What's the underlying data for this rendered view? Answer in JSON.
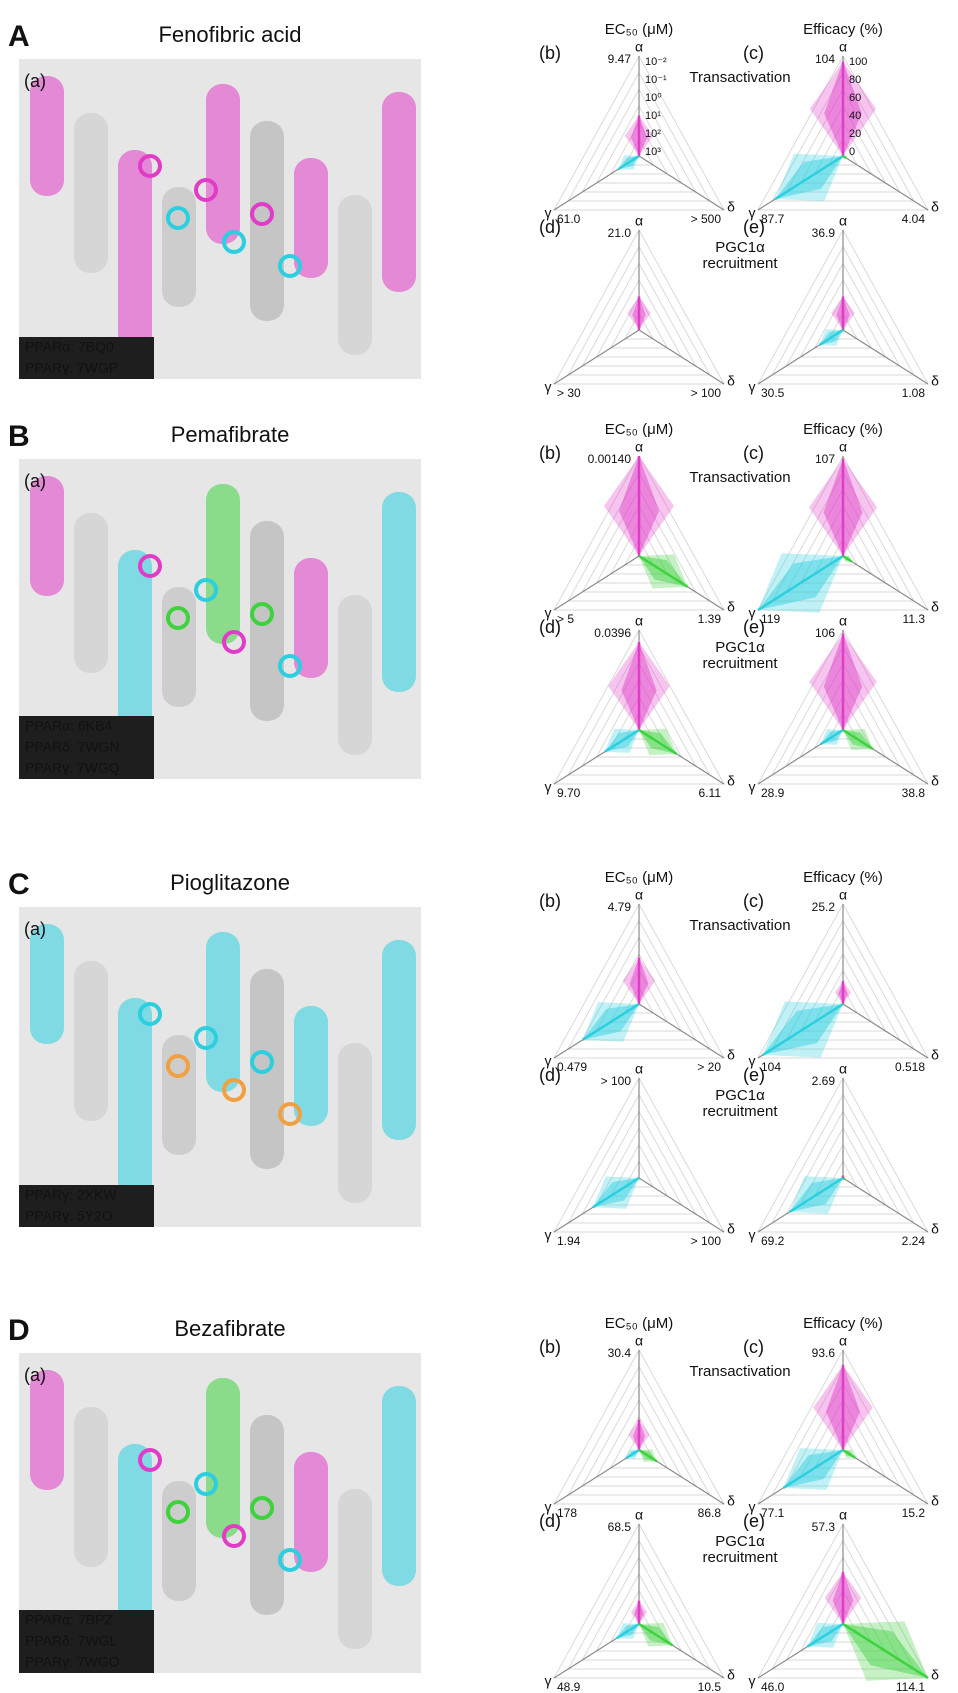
{
  "axis_letters": {
    "alpha": "α",
    "gamma": "γ",
    "delta": "δ"
  },
  "axis_colors": {
    "alpha": "#e03cc8",
    "gamma": "#2ccfe0",
    "delta": "#3ed23e"
  },
  "ec50_ticks": [
    "10⁻²",
    "10⁻¹",
    "10⁰",
    "10¹",
    "10²",
    "10³"
  ],
  "efficacy_ticks": [
    "100",
    "80",
    "60",
    "40",
    "20",
    "0"
  ],
  "panels": [
    {
      "letter": "A",
      "title": "Fenofibric acid",
      "image_label": "(a)",
      "legend": [
        {
          "text": "PPARα: 7BQ0",
          "color": "#e03cc8"
        },
        {
          "text": "PPARγ: 7WGP",
          "color": "#2ccfe0"
        }
      ],
      "ec50_title": "EC₅₀ (μM)",
      "efficacy_title": "Efficacy (%)",
      "row1_title": "Transactivation",
      "row2_title": [
        "PGC1α",
        "recruitment"
      ],
      "charts": [
        {
          "label": "(b)",
          "alpha": "9.47",
          "gamma": "61.0",
          "delta": "> 500"
        },
        {
          "label": "(c)",
          "alpha": "104",
          "gamma": "87.7",
          "delta": "4.04"
        },
        {
          "label": "(d)",
          "alpha": "21.0",
          "gamma": "> 30",
          "delta": "> 100"
        },
        {
          "label": "(e)",
          "alpha": "36.9",
          "gamma": "30.5",
          "delta": "1.08"
        }
      ]
    },
    {
      "letter": "B",
      "title": "Pemafibrate",
      "image_label": "(a)",
      "legend": [
        {
          "text": "PPARα: 6KB4",
          "color": "#e03cc8"
        },
        {
          "text": "PPARδ: 7WGN",
          "color": "#3ed23e"
        },
        {
          "text": "PPARγ: 7WGQ",
          "color": "#2ccfe0"
        }
      ],
      "ec50_title": "EC₅₀ (μM)",
      "efficacy_title": "Efficacy (%)",
      "row1_title": "Transactivation",
      "row2_title": [
        "PGC1α",
        "recruitment"
      ],
      "charts": [
        {
          "label": "(b)",
          "alpha": "0.00140",
          "gamma": "> 5",
          "delta": "1.39"
        },
        {
          "label": "(c)",
          "alpha": "107",
          "gamma": "119",
          "delta": "11.3"
        },
        {
          "label": "(d)",
          "alpha": "0.0396",
          "gamma": "9.70",
          "delta": "6.11"
        },
        {
          "label": "(e)",
          "alpha": "106",
          "gamma": "28.9",
          "delta": "38.8"
        }
      ]
    },
    {
      "letter": "C",
      "title": "Pioglitazone",
      "image_label": "(a)",
      "legend": [
        {
          "text": "PPARγ: 2XKW",
          "color": "#2ccfe0"
        },
        {
          "text": "PPARγ: 5Y2O",
          "color": "#f0a040"
        }
      ],
      "ec50_title": "EC₅₀ (μM)",
      "efficacy_title": "Efficacy (%)",
      "row1_title": "Transactivation",
      "row2_title": [
        "PGC1α",
        "recruitment"
      ],
      "charts": [
        {
          "label": "(b)",
          "alpha": "4.79",
          "gamma": "0.479",
          "delta": "> 20"
        },
        {
          "label": "(c)",
          "alpha": "25.2",
          "gamma": "104",
          "delta": "0.518"
        },
        {
          "label": "(d)",
          "alpha": "> 100",
          "gamma": "1.94",
          "delta": "> 100"
        },
        {
          "label": "(e)",
          "alpha": "2.69",
          "gamma": "69.2",
          "delta": "2.24"
        }
      ]
    },
    {
      "letter": "D",
      "title": "Bezafibrate",
      "image_label": "(a)",
      "legend": [
        {
          "text": "PPARα: 7BPZ",
          "color": "#e03cc8"
        },
        {
          "text": "PPARδ: 7WGL",
          "color": "#3ed23e"
        },
        {
          "text": "PPARγ: 7WGO",
          "color": "#2ccfe0"
        }
      ],
      "ec50_title": "EC₅₀ (μM)",
      "efficacy_title": "Efficacy (%)",
      "row1_title": "Transactivation",
      "row2_title": [
        "PGC1α",
        "recruitment"
      ],
      "charts": [
        {
          "label": "(b)",
          "alpha": "30.4",
          "gamma": "178",
          "delta": "86.8"
        },
        {
          "label": "(c)",
          "alpha": "93.6",
          "gamma": "77.1",
          "delta": "15.2"
        },
        {
          "label": "(d)",
          "alpha": "68.5",
          "gamma": "48.9",
          "delta": "10.5"
        },
        {
          "label": "(e)",
          "alpha": "57.3",
          "gamma": "46.0",
          "delta": "114.1"
        }
      ]
    }
  ]
}
